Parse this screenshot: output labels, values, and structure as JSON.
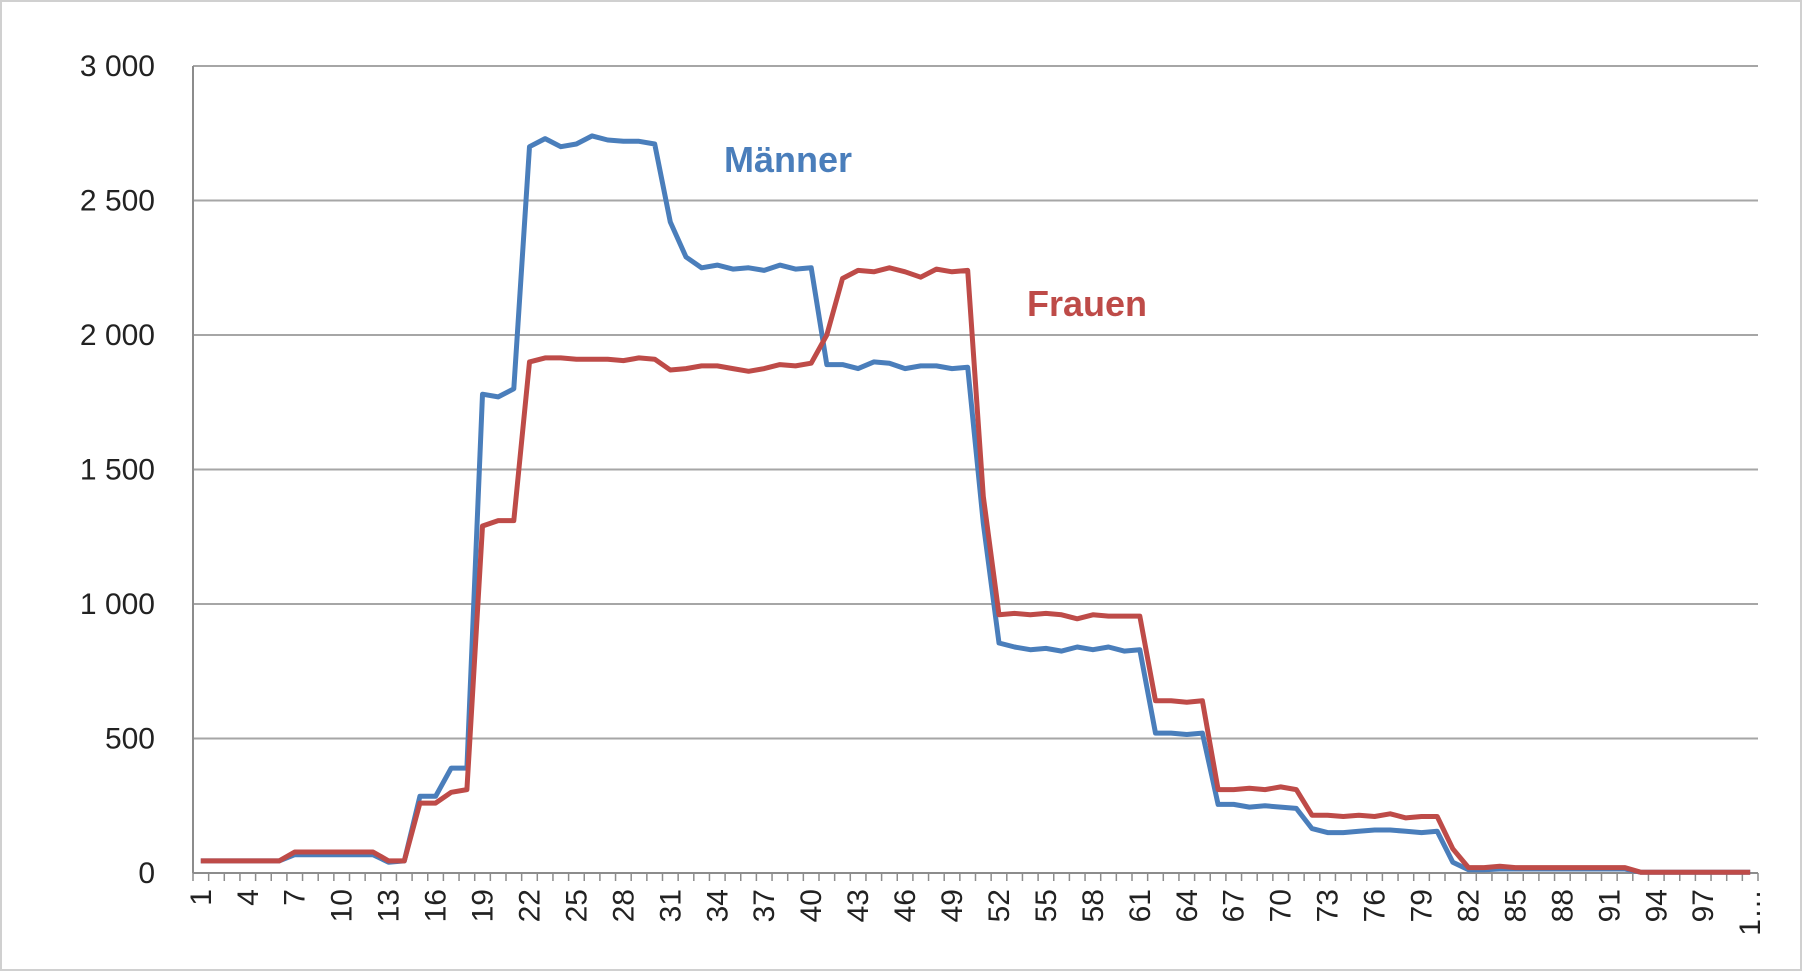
{
  "chart_data": {
    "type": "line",
    "categories": [
      "1",
      null,
      null,
      "4",
      null,
      null,
      "7",
      null,
      null,
      "10",
      null,
      null,
      "13",
      null,
      null,
      "16",
      null,
      null,
      "19",
      null,
      null,
      "22",
      null,
      null,
      "25",
      null,
      null,
      "28",
      null,
      null,
      "31",
      null,
      null,
      "34",
      null,
      null,
      "37",
      null,
      null,
      "40",
      null,
      null,
      "43",
      null,
      null,
      "46",
      null,
      null,
      "49",
      null,
      null,
      "52",
      null,
      null,
      "55",
      null,
      null,
      "58",
      null,
      null,
      "61",
      null,
      null,
      "64",
      null,
      null,
      "67",
      null,
      null,
      "70",
      null,
      null,
      "73",
      null,
      null,
      "76",
      null,
      null,
      "79",
      null,
      null,
      "82",
      null,
      null,
      "85",
      null,
      null,
      "88",
      null,
      null,
      "91",
      null,
      null,
      "94",
      null,
      null,
      "97",
      null,
      null,
      "1…"
    ],
    "series": [
      {
        "name": "Männer",
        "color": "#4a7ebb",
        "values": [
          45,
          45,
          45,
          45,
          45,
          45,
          68,
          68,
          68,
          68,
          68,
          68,
          40,
          45,
          285,
          285,
          390,
          390,
          1780,
          1770,
          1800,
          2700,
          2730,
          2700,
          2710,
          2740,
          2725,
          2720,
          2720,
          2710,
          2420,
          2290,
          2250,
          2260,
          2245,
          2250,
          2240,
          2260,
          2245,
          2250,
          1890,
          1890,
          1875,
          1900,
          1895,
          1875,
          1885,
          1885,
          1875,
          1880,
          1300,
          855,
          840,
          830,
          835,
          825,
          840,
          830,
          840,
          825,
          830,
          520,
          520,
          515,
          520,
          255,
          255,
          245,
          250,
          245,
          240,
          165,
          150,
          150,
          155,
          160,
          160,
          155,
          150,
          155,
          40,
          12,
          12,
          15,
          15,
          15,
          15,
          15,
          15,
          15,
          15,
          15,
          3,
          3,
          3,
          3,
          3,
          3,
          3,
          3
        ]
      },
      {
        "name": "Frauen",
        "color": "#be4b48",
        "values": [
          45,
          45,
          45,
          45,
          45,
          45,
          78,
          78,
          78,
          78,
          78,
          78,
          45,
          45,
          260,
          260,
          300,
          310,
          1290,
          1310,
          1310,
          1900,
          1915,
          1915,
          1910,
          1910,
          1910,
          1905,
          1915,
          1910,
          1870,
          1875,
          1885,
          1885,
          1875,
          1865,
          1875,
          1890,
          1885,
          1895,
          2000,
          2210,
          2240,
          2235,
          2250,
          2235,
          2215,
          2245,
          2235,
          2240,
          1400,
          960,
          965,
          960,
          965,
          960,
          945,
          960,
          955,
          955,
          955,
          640,
          640,
          635,
          640,
          310,
          310,
          315,
          310,
          320,
          310,
          215,
          215,
          210,
          215,
          210,
          220,
          205,
          210,
          210,
          90,
          20,
          20,
          25,
          20,
          20,
          20,
          20,
          20,
          20,
          20,
          20,
          3,
          3,
          3,
          3,
          3,
          3,
          3,
          3
        ]
      }
    ],
    "ylim": [
      0,
      3000
    ],
    "yticks": [
      0,
      500,
      {
        "value": 1000,
        "label": "1 000"
      },
      {
        "value": 1500,
        "label": "1 500"
      },
      {
        "value": 2000,
        "label": "2 000"
      },
      {
        "value": 2500,
        "label": "2 500"
      },
      {
        "value": 3000,
        "label": "3 000"
      }
    ],
    "grid": true
  }
}
